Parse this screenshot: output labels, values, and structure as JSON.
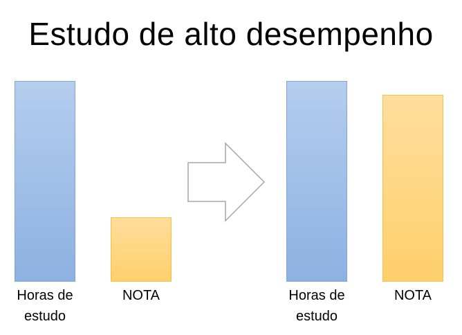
{
  "title": "Estudo de alto desempenho",
  "icons": {
    "arrow": "right-arrow-outline-icon"
  },
  "colors": {
    "blue_bar": "#a7c3ea",
    "orange_bar": "#ffd88a",
    "arrow_stroke": "#a6a6a6"
  },
  "chart_data": [
    {
      "type": "bar",
      "categories": [
        "Horas de estudo",
        "NOTA"
      ],
      "values": [
        100,
        32
      ],
      "labels": [
        "Horas de\nestudo",
        "NOTA"
      ]
    },
    {
      "type": "bar",
      "categories": [
        "Horas de estudo",
        "NOTA"
      ],
      "values": [
        100,
        93
      ],
      "labels": [
        "Horas de\nestudo",
        "NOTA"
      ]
    }
  ]
}
